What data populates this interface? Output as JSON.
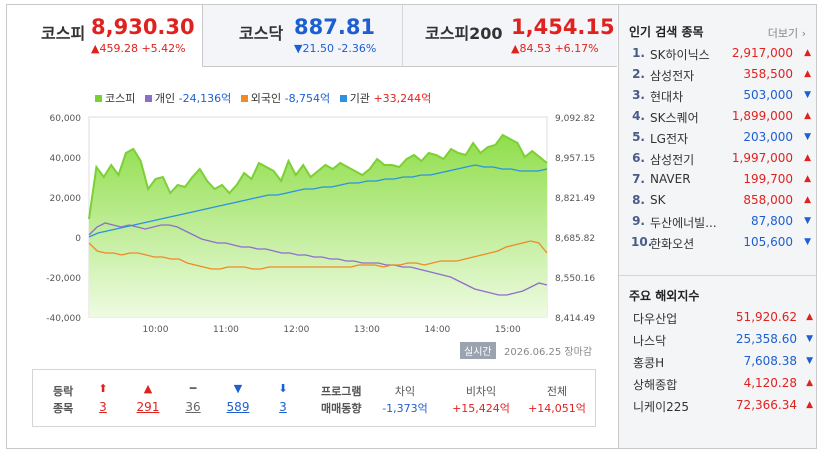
{
  "tabs": [
    {
      "name": "코스피",
      "value": "8,930.30",
      "change": "▲459.28 +5.42%",
      "dir": "up"
    },
    {
      "name": "코스닥",
      "value": "887.81",
      "change": "▼21.50 -2.36%",
      "dir": "down"
    },
    {
      "name": "코스피200",
      "value": "1,454.15",
      "change": "▲84.53 +6.17%",
      "dir": "up"
    }
  ],
  "legend": [
    {
      "name": "코스피",
      "value": "",
      "color": "#7ccf34"
    },
    {
      "name": "개인",
      "value": "-24,136억",
      "color": "#8f6dcc",
      "dir": "down"
    },
    {
      "name": "외국인",
      "value": "-8,754억",
      "color": "#f08a24",
      "dir": "down"
    },
    {
      "name": "기관",
      "value": "+33,244억",
      "color": "#2b92e0",
      "dir": "up"
    }
  ],
  "chart_data": {
    "type": "line",
    "x_ticks": [
      "10:00",
      "11:00",
      "12:00",
      "13:00",
      "14:00",
      "15:00"
    ],
    "y_left_ticks": [
      "60,000",
      "40,000",
      "20,000",
      "0",
      "-20,000",
      "-40,000"
    ],
    "y_right_ticks": [
      "9,092.82",
      "8,957.15",
      "8,821.49",
      "8,685.82",
      "8,550.16",
      "8,414.49"
    ],
    "ylim_left": [
      -40000,
      60000
    ],
    "x_range": [
      "09:00",
      "15:30"
    ],
    "series": [
      {
        "name": "코스피",
        "color": "#7ccf34",
        "values": [
          9000,
          35000,
          30000,
          36000,
          31000,
          42000,
          44000,
          38000,
          24000,
          29000,
          30000,
          22000,
          26000,
          25000,
          30000,
          34000,
          28000,
          24000,
          26000,
          22000,
          26000,
          32000,
          29000,
          37000,
          35000,
          33000,
          28000,
          38000,
          31000,
          36000,
          30000,
          33000,
          36000,
          34000,
          37000,
          35000,
          33000,
          31000,
          34000,
          39000,
          36000,
          36000,
          35000,
          39000,
          41000,
          38000,
          42000,
          41000,
          39000,
          44000,
          42000,
          41000,
          47000,
          42000,
          45000,
          46000,
          51000,
          49000,
          47000,
          40000,
          43000,
          40000,
          37000
        ]
      },
      {
        "name": "개인",
        "color": "#8f6dcc",
        "values": [
          1000,
          5000,
          7000,
          6000,
          5000,
          6000,
          5000,
          4000,
          5000,
          6000,
          6000,
          5000,
          3000,
          1000,
          -1000,
          -2000,
          -3000,
          -3000,
          -4000,
          -5000,
          -5000,
          -6000,
          -6000,
          -7000,
          -8000,
          -8000,
          -9000,
          -9000,
          -10000,
          -10000,
          -11000,
          -11000,
          -12000,
          -12000,
          -13000,
          -13000,
          -13000,
          -14000,
          -14000,
          -15000,
          -15000,
          -16000,
          -17000,
          -18000,
          -19000,
          -20000,
          -22000,
          -24000,
          -26000,
          -27000,
          -28000,
          -29000,
          -29000,
          -28000,
          -27000,
          -25000,
          -23000,
          -24000
        ]
      },
      {
        "name": "외국인",
        "color": "#f08a24",
        "values": [
          -3000,
          -7000,
          -8000,
          -8000,
          -9000,
          -8000,
          -8000,
          -9000,
          -10000,
          -10000,
          -11000,
          -11000,
          -13000,
          -14000,
          -15000,
          -16000,
          -16000,
          -15000,
          -15000,
          -15000,
          -16000,
          -16000,
          -15000,
          -15000,
          -15000,
          -15000,
          -15000,
          -15000,
          -15000,
          -15000,
          -15000,
          -15000,
          -15000,
          -14000,
          -14000,
          -14000,
          -15000,
          -14000,
          -14000,
          -13000,
          -13000,
          -14000,
          -13000,
          -12000,
          -12000,
          -12000,
          -11000,
          -10000,
          -9000,
          -8000,
          -7000,
          -5000,
          -4000,
          -3000,
          -2000,
          -3000,
          -8000
        ]
      },
      {
        "name": "기관",
        "color": "#2b92e0",
        "values": [
          0,
          2000,
          3000,
          4000,
          5000,
          6000,
          7000,
          8000,
          9000,
          10000,
          11000,
          12000,
          13000,
          14000,
          15000,
          16000,
          17000,
          18000,
          19000,
          20000,
          21000,
          21000,
          22000,
          23000,
          24000,
          24000,
          25000,
          25000,
          26000,
          27000,
          27000,
          28000,
          28000,
          29000,
          29000,
          30000,
          30000,
          31000,
          31000,
          32000,
          33000,
          34000,
          35000,
          36000,
          35000,
          35000,
          34000,
          34000,
          33000,
          33000,
          33000,
          34000
        ]
      }
    ]
  },
  "status": {
    "badge": "실시간",
    "datetime": "2026.06.25 장마감"
  },
  "summary": {
    "label_updown": [
      "등락",
      "종목"
    ],
    "counts": [
      {
        "icon": "⬆",
        "value": "3",
        "dir": "up"
      },
      {
        "icon": "▲",
        "value": "291",
        "dir": "up"
      },
      {
        "icon": "━",
        "value": "36",
        "dir": "flat"
      },
      {
        "icon": "▼",
        "value": "589",
        "dir": "down"
      },
      {
        "icon": "⬇",
        "value": "3",
        "dir": "down"
      }
    ],
    "label_program": [
      "프로그램",
      "매매동향"
    ],
    "program": [
      {
        "header": "차익",
        "value": "-1,373억",
        "dir": "down"
      },
      {
        "header": "비차익",
        "value": "+15,424억",
        "dir": "up"
      },
      {
        "header": "전체",
        "value": "+14,051억",
        "dir": "up"
      }
    ]
  },
  "popular": {
    "title": "인기 검색 종목",
    "more": "더보기",
    "items": [
      {
        "rank": "1.",
        "name": "SK하이닉스",
        "price": "2,917,000",
        "dir": "up"
      },
      {
        "rank": "2.",
        "name": "삼성전자",
        "price": "358,500",
        "dir": "up"
      },
      {
        "rank": "3.",
        "name": "현대차",
        "price": "503,000",
        "dir": "down"
      },
      {
        "rank": "4.",
        "name": "SK스퀘어",
        "price": "1,899,000",
        "dir": "up"
      },
      {
        "rank": "5.",
        "name": "LG전자",
        "price": "203,000",
        "dir": "down"
      },
      {
        "rank": "6.",
        "name": "삼성전기",
        "price": "1,997,000",
        "dir": "up"
      },
      {
        "rank": "7.",
        "name": "NAVER",
        "price": "199,700",
        "dir": "up"
      },
      {
        "rank": "8.",
        "name": "SK",
        "price": "858,000",
        "dir": "up"
      },
      {
        "rank": "9.",
        "name": "두산에너빌...",
        "price": "87,800",
        "dir": "down"
      },
      {
        "rank": "10.",
        "name": "한화오션",
        "price": "105,600",
        "dir": "down"
      }
    ]
  },
  "world": {
    "title": "주요 해외지수",
    "items": [
      {
        "name": "다우산업",
        "price": "51,920.62",
        "dir": "up"
      },
      {
        "name": "나스닥",
        "price": "25,358.60",
        "dir": "down"
      },
      {
        "name": "홍콩H",
        "price": "7,608.38",
        "dir": "down"
      },
      {
        "name": "상해종합",
        "price": "4,120.28",
        "dir": "up"
      },
      {
        "name": "니케이225",
        "price": "72,366.34",
        "dir": "up"
      }
    ]
  }
}
